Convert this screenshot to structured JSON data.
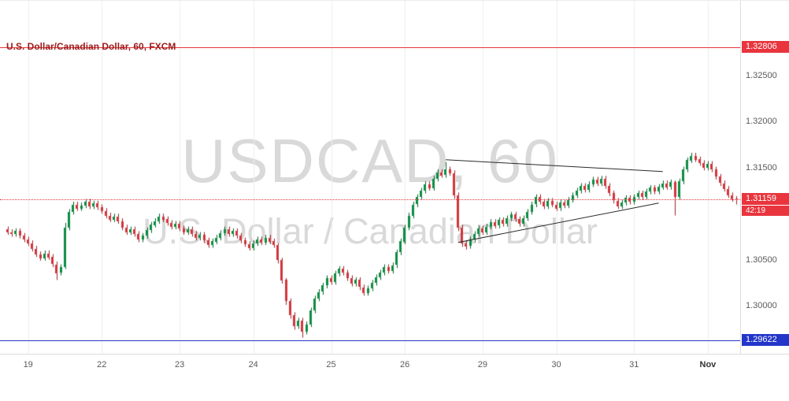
{
  "header": {
    "symbol_title": "U.S. Dollar/Canadian Dollar, 60, FXCM"
  },
  "watermark": {
    "line1": "USDCAD, 60",
    "line2": "U.S. Dollar / Canadian Dollar"
  },
  "colors": {
    "up_body": "#0d8c43",
    "up_border": "#06612d",
    "down_body": "#d1353b",
    "down_border": "#9e2227",
    "grid": "#ececec",
    "axis_text": "#5a5a5a",
    "axis_border": "#dcdcdc",
    "title": "#9b1c1c",
    "watermark": "#d9d9d9",
    "resistance": "#e8353e",
    "support": "#2336c9",
    "current": "#e8353e",
    "trendline": "#2a2a2a"
  },
  "chart_data": {
    "type": "candlestick",
    "symbol": "USDCAD",
    "interval": "60",
    "feed": "FXCM",
    "price_scale": {
      "top": 1.3331,
      "bottom": 1.2948
    },
    "price_ticks": [
      "1.32500",
      "1.32000",
      "1.31500",
      "1.31000",
      "1.30500",
      "1.30000"
    ],
    "time_ticks": [
      {
        "label": "19",
        "index": 5
      },
      {
        "label": "22",
        "index": 23
      },
      {
        "label": "23",
        "index": 42
      },
      {
        "label": "24",
        "index": 60
      },
      {
        "label": "25",
        "index": 79
      },
      {
        "label": "26",
        "index": 97
      },
      {
        "label": "29",
        "index": 116
      },
      {
        "label": "30",
        "index": 134
      },
      {
        "label": "31",
        "index": 153
      },
      {
        "label": "Nov",
        "index": 171,
        "emphasis": true
      }
    ],
    "levels": {
      "resistance": {
        "price": 1.32806,
        "label": "1.32806"
      },
      "support": {
        "price": 1.29622,
        "label": "1.29622"
      },
      "current": {
        "price": 1.31159,
        "label": "1.31159",
        "countdown": "42:19"
      }
    },
    "trendlines": [
      {
        "name": "triangle-upper",
        "from_index": 107,
        "from_price": 1.31585,
        "to_index": 160,
        "to_price": 1.31457
      },
      {
        "name": "triangle-lower",
        "from_index": 110,
        "from_price": 1.30688,
        "to_index": 159,
        "to_price": 1.31115
      }
    ],
    "candles_ohlc": [
      [
        1.3083,
        1.3086,
        1.3077,
        1.308
      ],
      [
        1.308,
        1.3083,
        1.3075,
        1.3078
      ],
      [
        1.3078,
        1.3084,
        1.3075,
        1.3081
      ],
      [
        1.3081,
        1.3084,
        1.3073,
        1.3076
      ],
      [
        1.3076,
        1.3079,
        1.3069,
        1.3072
      ],
      [
        1.3072,
        1.3075,
        1.3065,
        1.3068
      ],
      [
        1.3068,
        1.3071,
        1.3059,
        1.3062
      ],
      [
        1.3062,
        1.3065,
        1.3053,
        1.3056
      ],
      [
        1.3056,
        1.3059,
        1.3049,
        1.3052
      ],
      [
        1.3052,
        1.306,
        1.3049,
        1.3057
      ],
      [
        1.3057,
        1.306,
        1.305,
        1.3053
      ],
      [
        1.3053,
        1.3056,
        1.3042,
        1.3045
      ],
      [
        1.3045,
        1.3048,
        1.3028,
        1.3036
      ],
      [
        1.3036,
        1.3045,
        1.3033,
        1.3042
      ],
      [
        1.3042,
        1.309,
        1.304,
        1.3085
      ],
      [
        1.3085,
        1.3105,
        1.3082,
        1.3102
      ],
      [
        1.3102,
        1.3113,
        1.3099,
        1.311
      ],
      [
        1.311,
        1.3113,
        1.3103,
        1.3106
      ],
      [
        1.3106,
        1.3112,
        1.3103,
        1.3109
      ],
      [
        1.3109,
        1.3116,
        1.3106,
        1.3113
      ],
      [
        1.3113,
        1.3116,
        1.3105,
        1.3108
      ],
      [
        1.3108,
        1.3114,
        1.3105,
        1.3111
      ],
      [
        1.3111,
        1.3114,
        1.3104,
        1.3107
      ],
      [
        1.3107,
        1.311,
        1.31,
        1.3103
      ],
      [
        1.3103,
        1.3106,
        1.3095,
        1.3098
      ],
      [
        1.3098,
        1.3101,
        1.3091,
        1.3094
      ],
      [
        1.3094,
        1.31,
        1.3091,
        1.3097
      ],
      [
        1.3097,
        1.31,
        1.3089,
        1.3092
      ],
      [
        1.3092,
        1.3095,
        1.3082,
        1.3085
      ],
      [
        1.3085,
        1.3088,
        1.3077,
        1.308
      ],
      [
        1.308,
        1.3086,
        1.3077,
        1.3083
      ],
      [
        1.3083,
        1.3086,
        1.3075,
        1.3078
      ],
      [
        1.3078,
        1.3081,
        1.3069,
        1.3072
      ],
      [
        1.3072,
        1.3079,
        1.3069,
        1.3076
      ],
      [
        1.3076,
        1.3085,
        1.3073,
        1.3082
      ],
      [
        1.3082,
        1.3091,
        1.3079,
        1.3088
      ],
      [
        1.3088,
        1.3095,
        1.3085,
        1.3092
      ],
      [
        1.3092,
        1.31,
        1.3089,
        1.3097
      ],
      [
        1.3097,
        1.31,
        1.3091,
        1.3094
      ],
      [
        1.3094,
        1.3097,
        1.3087,
        1.309
      ],
      [
        1.309,
        1.3093,
        1.3083,
        1.3086
      ],
      [
        1.3086,
        1.3092,
        1.3083,
        1.3089
      ],
      [
        1.3089,
        1.3092,
        1.3081,
        1.3084
      ],
      [
        1.3084,
        1.3087,
        1.3077,
        1.308
      ],
      [
        1.308,
        1.3086,
        1.3077,
        1.3083
      ],
      [
        1.3083,
        1.3086,
        1.3075,
        1.3078
      ],
      [
        1.3078,
        1.3081,
        1.3071,
        1.3074
      ],
      [
        1.3074,
        1.308,
        1.3071,
        1.3077
      ],
      [
        1.3077,
        1.308,
        1.3068,
        1.3071
      ],
      [
        1.3071,
        1.3074,
        1.3063,
        1.3066
      ],
      [
        1.3066,
        1.3073,
        1.3063,
        1.307
      ],
      [
        1.307,
        1.3077,
        1.3067,
        1.3074
      ],
      [
        1.3074,
        1.3082,
        1.3071,
        1.3079
      ],
      [
        1.3079,
        1.3086,
        1.3076,
        1.3083
      ],
      [
        1.3083,
        1.3086,
        1.3075,
        1.3078
      ],
      [
        1.3078,
        1.3084,
        1.3075,
        1.3081
      ],
      [
        1.3081,
        1.3084,
        1.3073,
        1.3076
      ],
      [
        1.3076,
        1.3079,
        1.3068,
        1.3071
      ],
      [
        1.3071,
        1.3074,
        1.3064,
        1.3067
      ],
      [
        1.3067,
        1.307,
        1.306,
        1.3063
      ],
      [
        1.3063,
        1.3071,
        1.306,
        1.3068
      ],
      [
        1.3068,
        1.3075,
        1.3065,
        1.3072
      ],
      [
        1.3072,
        1.3075,
        1.3066,
        1.3069
      ],
      [
        1.3069,
        1.3077,
        1.3066,
        1.3074
      ],
      [
        1.3074,
        1.3077,
        1.3067,
        1.307
      ],
      [
        1.307,
        1.3073,
        1.3063,
        1.3066
      ],
      [
        1.3066,
        1.3068,
        1.3046,
        1.305
      ],
      [
        1.305,
        1.3052,
        1.3024,
        1.3028
      ],
      [
        1.3028,
        1.303,
        1.3001,
        1.3005
      ],
      [
        1.3005,
        1.3008,
        1.2986,
        1.299
      ],
      [
        1.299,
        1.2993,
        1.2974,
        1.2978
      ],
      [
        1.2978,
        1.2987,
        1.2975,
        1.2984
      ],
      [
        1.2984,
        1.2987,
        1.29655,
        1.2972
      ],
      [
        1.2972,
        1.2983,
        1.2969,
        1.298
      ],
      [
        1.298,
        1.2998,
        1.2977,
        1.2995
      ],
      [
        1.2995,
        1.3011,
        1.2992,
        1.3008
      ],
      [
        1.3008,
        1.3018,
        1.3005,
        1.3015
      ],
      [
        1.3015,
        1.3025,
        1.3012,
        1.3022
      ],
      [
        1.3022,
        1.3033,
        1.3019,
        1.303
      ],
      [
        1.303,
        1.3033,
        1.3023,
        1.3026
      ],
      [
        1.3026,
        1.3038,
        1.3023,
        1.3035
      ],
      [
        1.3035,
        1.3043,
        1.3032,
        1.304
      ],
      [
        1.304,
        1.3043,
        1.3033,
        1.3036
      ],
      [
        1.3036,
        1.3039,
        1.3027,
        1.303
      ],
      [
        1.303,
        1.3033,
        1.3021,
        1.3024
      ],
      [
        1.3024,
        1.3031,
        1.3021,
        1.3028
      ],
      [
        1.3028,
        1.3031,
        1.3017,
        1.302
      ],
      [
        1.302,
        1.3023,
        1.3011,
        1.3014
      ],
      [
        1.3014,
        1.3022,
        1.3011,
        1.3019
      ],
      [
        1.3019,
        1.3028,
        1.3016,
        1.3025
      ],
      [
        1.3025,
        1.3034,
        1.3022,
        1.3031
      ],
      [
        1.3031,
        1.3039,
        1.3028,
        1.3036
      ],
      [
        1.3036,
        1.3045,
        1.3033,
        1.3042
      ],
      [
        1.3042,
        1.3045,
        1.3035,
        1.3038
      ],
      [
        1.3038,
        1.3047,
        1.3035,
        1.3044
      ],
      [
        1.3044,
        1.3061,
        1.3041,
        1.3058
      ],
      [
        1.3058,
        1.3073,
        1.3055,
        1.307
      ],
      [
        1.307,
        1.3088,
        1.3067,
        1.3085
      ],
      [
        1.3085,
        1.3101,
        1.3082,
        1.3098
      ],
      [
        1.3098,
        1.3113,
        1.3095,
        1.311
      ],
      [
        1.311,
        1.3121,
        1.3107,
        1.3118
      ],
      [
        1.3118,
        1.3128,
        1.3115,
        1.3125
      ],
      [
        1.3125,
        1.3135,
        1.3122,
        1.3132
      ],
      [
        1.3132,
        1.3135,
        1.3125,
        1.3128
      ],
      [
        1.3128,
        1.3141,
        1.3125,
        1.3138
      ],
      [
        1.3138,
        1.3148,
        1.3135,
        1.3145
      ],
      [
        1.3145,
        1.3148,
        1.3139,
        1.3142
      ],
      [
        1.3142,
        1.3156,
        1.3139,
        1.3148
      ],
      [
        1.3148,
        1.3151,
        1.3141,
        1.3144
      ],
      [
        1.3144,
        1.3147,
        1.3116,
        1.312
      ],
      [
        1.312,
        1.3123,
        1.3081,
        1.3085
      ],
      [
        1.3085,
        1.3088,
        1.3064,
        1.3068
      ],
      [
        1.3068,
        1.3071,
        1.3061,
        1.3065
      ],
      [
        1.3065,
        1.3075,
        1.3062,
        1.3072
      ],
      [
        1.3072,
        1.3081,
        1.3069,
        1.3078
      ],
      [
        1.3078,
        1.3087,
        1.3075,
        1.3084
      ],
      [
        1.3084,
        1.3087,
        1.3077,
        1.308
      ],
      [
        1.308,
        1.3089,
        1.3077,
        1.3086
      ],
      [
        1.3086,
        1.3094,
        1.3083,
        1.3091
      ],
      [
        1.3091,
        1.3094,
        1.3084,
        1.3087
      ],
      [
        1.3087,
        1.3096,
        1.3084,
        1.3093
      ],
      [
        1.3093,
        1.3096,
        1.3086,
        1.3089
      ],
      [
        1.3089,
        1.3098,
        1.3086,
        1.3095
      ],
      [
        1.3095,
        1.3102,
        1.3092,
        1.3099
      ],
      [
        1.3099,
        1.3102,
        1.3091,
        1.3094
      ],
      [
        1.3094,
        1.3097,
        1.3086,
        1.3089
      ],
      [
        1.3089,
        1.3098,
        1.3086,
        1.3095
      ],
      [
        1.3095,
        1.3105,
        1.3092,
        1.3102
      ],
      [
        1.3102,
        1.3113,
        1.3099,
        1.311
      ],
      [
        1.311,
        1.3121,
        1.3107,
        1.3118
      ],
      [
        1.3118,
        1.3121,
        1.311,
        1.3113
      ],
      [
        1.3113,
        1.3116,
        1.3105,
        1.3108
      ],
      [
        1.3108,
        1.3117,
        1.3105,
        1.3114
      ],
      [
        1.3114,
        1.3117,
        1.3107,
        1.311
      ],
      [
        1.311,
        1.3113,
        1.3103,
        1.3106
      ],
      [
        1.3106,
        1.3115,
        1.3103,
        1.3112
      ],
      [
        1.3112,
        1.3115,
        1.3106,
        1.3109
      ],
      [
        1.3109,
        1.3118,
        1.3106,
        1.3115
      ],
      [
        1.3115,
        1.3123,
        1.3112,
        1.312
      ],
      [
        1.312,
        1.3128,
        1.3117,
        1.3125
      ],
      [
        1.3125,
        1.3133,
        1.3122,
        1.313
      ],
      [
        1.313,
        1.3133,
        1.3123,
        1.3126
      ],
      [
        1.3126,
        1.3135,
        1.3123,
        1.3132
      ],
      [
        1.3132,
        1.314,
        1.3129,
        1.3137
      ],
      [
        1.3137,
        1.314,
        1.313,
        1.3133
      ],
      [
        1.3133,
        1.3141,
        1.313,
        1.3138
      ],
      [
        1.3138,
        1.3141,
        1.3127,
        1.313
      ],
      [
        1.313,
        1.3133,
        1.3119,
        1.3122
      ],
      [
        1.3122,
        1.3125,
        1.3111,
        1.3114
      ],
      [
        1.3114,
        1.3117,
        1.3105,
        1.3108
      ],
      [
        1.3108,
        1.3115,
        1.3105,
        1.3112
      ],
      [
        1.3112,
        1.312,
        1.3109,
        1.3117
      ],
      [
        1.3117,
        1.312,
        1.311,
        1.3113
      ],
      [
        1.3113,
        1.3121,
        1.311,
        1.3118
      ],
      [
        1.3118,
        1.3125,
        1.3115,
        1.3122
      ],
      [
        1.3122,
        1.3125,
        1.3115,
        1.3118
      ],
      [
        1.3118,
        1.3127,
        1.3115,
        1.3124
      ],
      [
        1.3124,
        1.3131,
        1.3121,
        1.3128
      ],
      [
        1.3128,
        1.3131,
        1.3121,
        1.3124
      ],
      [
        1.3124,
        1.3132,
        1.3121,
        1.3129
      ],
      [
        1.3129,
        1.3136,
        1.3126,
        1.3133
      ],
      [
        1.3133,
        1.3136,
        1.3126,
        1.3129
      ],
      [
        1.3129,
        1.3137,
        1.3126,
        1.3134
      ],
      [
        1.3134,
        1.3136,
        1.3098,
        1.3118
      ],
      [
        1.3118,
        1.3138,
        1.3115,
        1.3135
      ],
      [
        1.3135,
        1.3151,
        1.3132,
        1.3148
      ],
      [
        1.3148,
        1.3161,
        1.3145,
        1.3158
      ],
      [
        1.3158,
        1.3166,
        1.3155,
        1.3163
      ],
      [
        1.3163,
        1.3166,
        1.3156,
        1.3159
      ],
      [
        1.3159,
        1.3162,
        1.3152,
        1.3155
      ],
      [
        1.3155,
        1.3158,
        1.3147,
        1.315
      ],
      [
        1.315,
        1.3157,
        1.3147,
        1.3154
      ],
      [
        1.3154,
        1.3157,
        1.3145,
        1.3148
      ],
      [
        1.3148,
        1.3151,
        1.3137,
        1.314
      ],
      [
        1.314,
        1.3143,
        1.313,
        1.3133
      ],
      [
        1.3133,
        1.3136,
        1.3124,
        1.3127
      ],
      [
        1.3127,
        1.313,
        1.3117,
        1.312
      ],
      [
        1.312,
        1.3123,
        1.3113,
        1.3116
      ],
      [
        1.3116,
        1.3119,
        1.311,
        1.31159
      ]
    ]
  }
}
